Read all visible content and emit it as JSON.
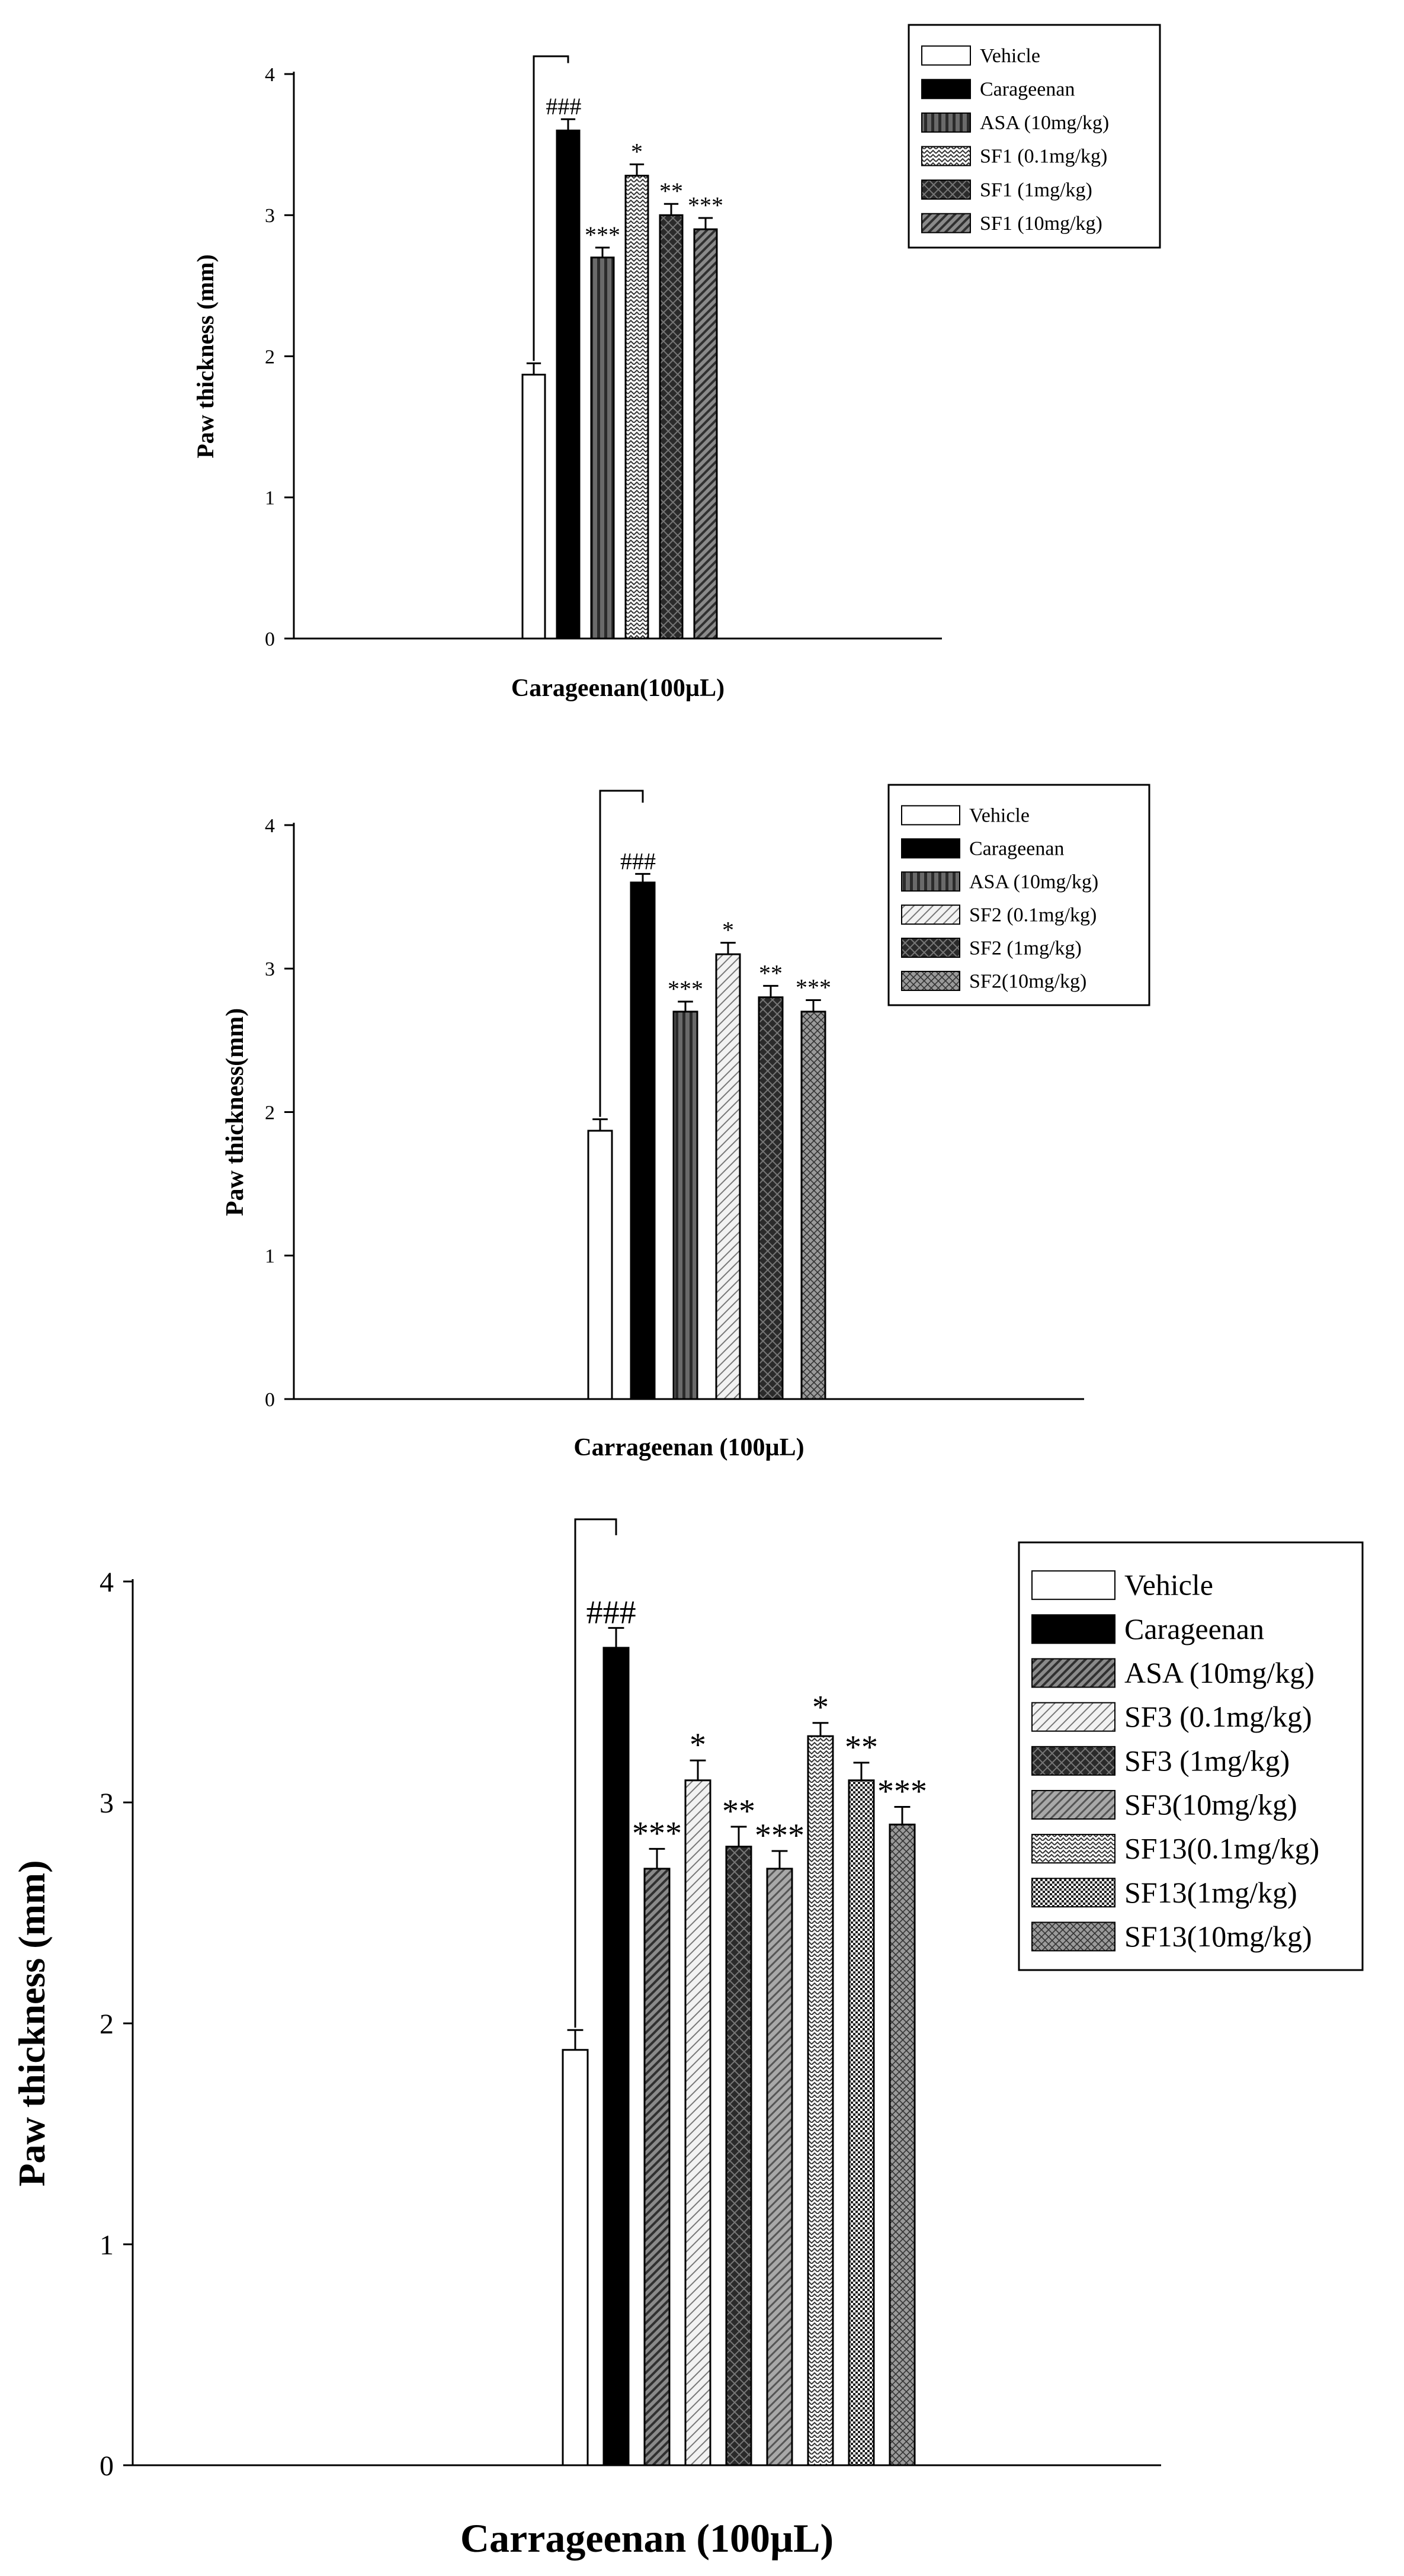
{
  "chart_data": [
    {
      "type": "bar",
      "title": "",
      "xlabel": "Carageenan(100µL)",
      "ylabel": "Paw thickness (mm)",
      "ylim": [
        0,
        4
      ],
      "yticks": [
        "0",
        "1",
        "2",
        "3",
        "4"
      ],
      "grid": false,
      "legend_position": "top-right",
      "series": [
        {
          "name": "Vehicle",
          "value": 1.87,
          "error": 0.08,
          "annotation": "",
          "fill": "white"
        },
        {
          "name": "Carageenan",
          "value": 3.6,
          "error": 0.08,
          "annotation": "###",
          "fill": "black"
        },
        {
          "name": "ASA (10mg/kg)",
          "value": 2.7,
          "error": 0.07,
          "annotation": "***",
          "fill": "vlines"
        },
        {
          "name": "SF1 (0.1mg/kg)",
          "value": 3.28,
          "error": 0.08,
          "annotation": "*",
          "fill": "zigzag"
        },
        {
          "name": "SF1 (1mg/kg)",
          "value": 3.0,
          "error": 0.08,
          "annotation": "**",
          "fill": "darkcross"
        },
        {
          "name": "SF1 (10mg/kg)",
          "value": 2.9,
          "error": 0.08,
          "annotation": "***",
          "fill": "diag"
        }
      ],
      "bracket": true
    },
    {
      "type": "bar",
      "title": "",
      "xlabel": "Carrageenan (100µL)",
      "ylabel": "Paw thickness(mm)",
      "ylim": [
        0,
        4
      ],
      "yticks": [
        "0",
        "1",
        "2",
        "3",
        "4"
      ],
      "grid": false,
      "legend_position": "top-right",
      "series": [
        {
          "name": "Vehicle",
          "value": 1.87,
          "error": 0.08,
          "annotation": "",
          "fill": "white"
        },
        {
          "name": "Carageenan",
          "value": 3.6,
          "error": 0.06,
          "annotation": "###",
          "fill": "black"
        },
        {
          "name": "ASA (10mg/kg)",
          "value": 2.7,
          "error": 0.07,
          "annotation": "***",
          "fill": "vlines"
        },
        {
          "name": "SF2 (0.1mg/kg)",
          "value": 3.1,
          "error": 0.08,
          "annotation": "*",
          "fill": "lightdiag"
        },
        {
          "name": "SF2 (1mg/kg)",
          "value": 2.8,
          "error": 0.08,
          "annotation": "**",
          "fill": "darkcross"
        },
        {
          "name": "SF2(10mg/kg)",
          "value": 2.7,
          "error": 0.08,
          "annotation": "***",
          "fill": "crosshatch"
        }
      ],
      "bracket": true
    },
    {
      "type": "bar",
      "title": "",
      "xlabel": "Carrageenan (100µL)",
      "ylabel": "Paw thickness (mm)",
      "ylim": [
        0,
        4
      ],
      "yticks": [
        "0",
        "1",
        "2",
        "3",
        "4"
      ],
      "grid": false,
      "legend_position": "top-right",
      "series": [
        {
          "name": "Vehicle",
          "value": 1.88,
          "error": 0.09,
          "annotation": "",
          "fill": "white"
        },
        {
          "name": "Carageenan",
          "value": 3.7,
          "error": 0.09,
          "annotation": "###",
          "fill": "black"
        },
        {
          "name": "ASA (10mg/kg)",
          "value": 2.7,
          "error": 0.09,
          "annotation": "***",
          "fill": "diag"
        },
        {
          "name": "SF3 (0.1mg/kg)",
          "value": 3.1,
          "error": 0.09,
          "annotation": "*",
          "fill": "lightdiag"
        },
        {
          "name": "SF3 (1mg/kg)",
          "value": 2.8,
          "error": 0.09,
          "annotation": "**",
          "fill": "darkcross"
        },
        {
          "name": "SF3(10mg/kg)",
          "value": 2.7,
          "error": 0.08,
          "annotation": "***",
          "fill": "greydiag"
        },
        {
          "name": "SF13(0.1mg/kg)",
          "value": 3.3,
          "error": 0.06,
          "annotation": "*",
          "fill": "zigzag"
        },
        {
          "name": "SF13(1mg/kg)",
          "value": 3.1,
          "error": 0.08,
          "annotation": "**",
          "fill": "dots"
        },
        {
          "name": "SF13(10mg/kg)",
          "value": 2.9,
          "error": 0.08,
          "annotation": "***",
          "fill": "crosshatch"
        }
      ],
      "bracket": true
    }
  ]
}
